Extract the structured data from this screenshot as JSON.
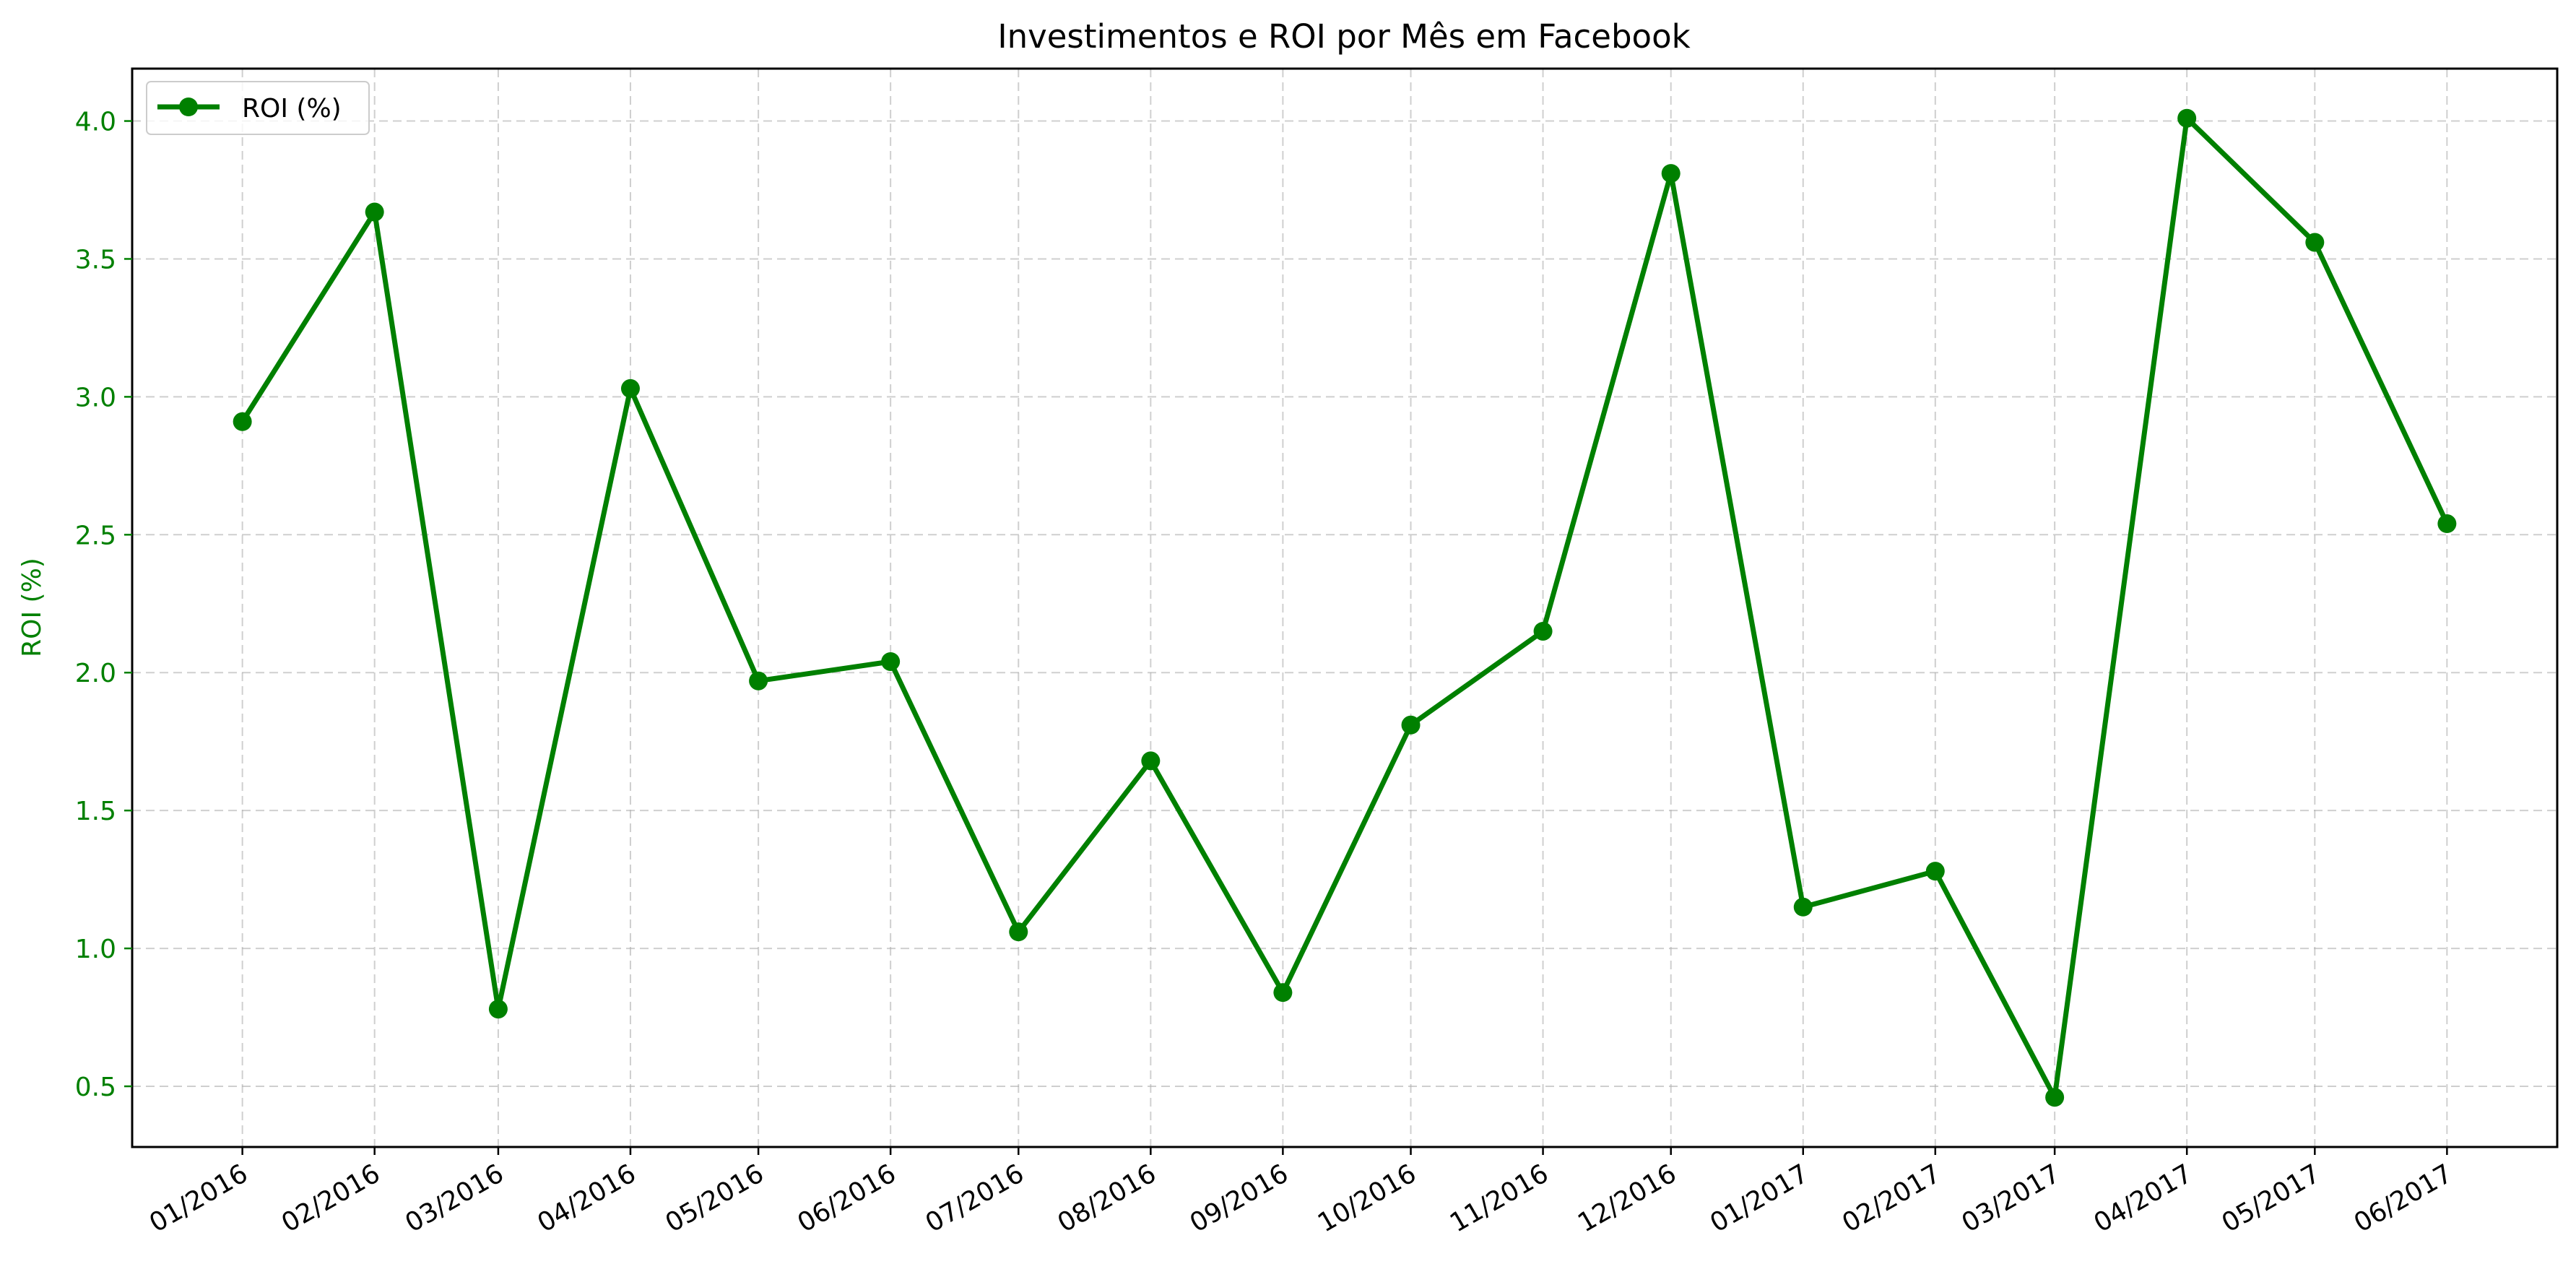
{
  "chart_data": {
    "type": "line",
    "title": "Investimentos e ROI por Mês em Facebook",
    "xlabel": "",
    "ylabel": "ROI (%)",
    "categories": [
      "01/2016",
      "02/2016",
      "03/2016",
      "04/2016",
      "05/2016",
      "06/2016",
      "07/2016",
      "08/2016",
      "09/2016",
      "10/2016",
      "11/2016",
      "12/2016",
      "01/2017",
      "02/2017",
      "03/2017",
      "04/2017",
      "05/2017",
      "06/2017"
    ],
    "x": [
      "2016-01-01",
      "2016-02-01",
      "2016-03-01",
      "2016-04-01",
      "2016-05-01",
      "2016-06-01",
      "2016-07-01",
      "2016-08-01",
      "2016-09-01",
      "2016-10-01",
      "2016-11-01",
      "2016-12-01",
      "2017-01-01",
      "2017-02-01",
      "2017-03-01",
      "2017-04-01",
      "2017-05-01",
      "2017-06-01"
    ],
    "series": [
      {
        "name": "ROI (%)",
        "color": "#008000",
        "values": [
          2.91,
          3.67,
          0.78,
          3.03,
          1.97,
          2.04,
          1.06,
          1.68,
          0.84,
          1.81,
          2.15,
          3.81,
          1.15,
          1.28,
          0.46,
          4.01,
          3.56,
          2.54
        ]
      }
    ],
    "ylim": [
      0.28,
      4.19
    ],
    "yticks": [
      0.5,
      1.0,
      1.5,
      2.0,
      2.5,
      3.0,
      3.5,
      4.0
    ],
    "ytick_labels": [
      "0.5",
      "1.0",
      "1.5",
      "2.0",
      "2.5",
      "3.0",
      "3.5",
      "4.0"
    ],
    "grid": true,
    "legend": "upper left",
    "axis_color": "#008000"
  }
}
